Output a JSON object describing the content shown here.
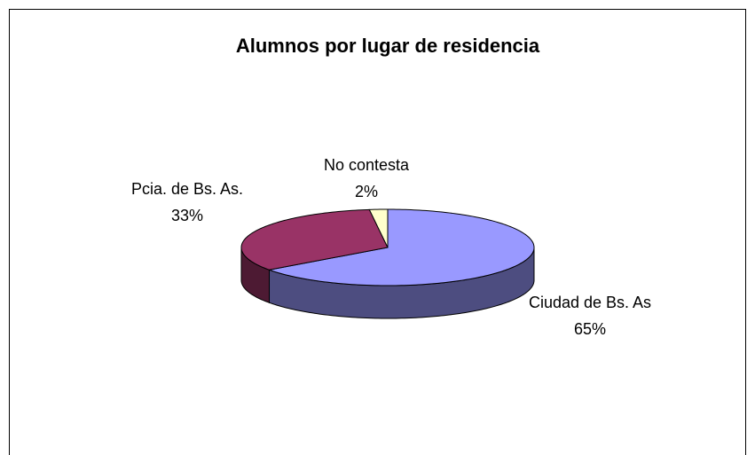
{
  "chart_data": {
    "type": "pie",
    "title": "Alumnos por lugar de residencia",
    "categories": [
      "Ciudad de Bs. As",
      "Pcia. de Bs. As.",
      "No contesta"
    ],
    "values": [
      65,
      33,
      2
    ],
    "value_labels": [
      "65%",
      "33%",
      "2%"
    ],
    "colors": [
      "#9999ff",
      "#993366",
      "#ffffcc"
    ],
    "three_d": true
  }
}
